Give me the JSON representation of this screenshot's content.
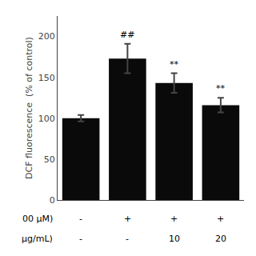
{
  "chart_data": {
    "type": "bar",
    "categories": [
      null,
      null,
      null,
      null
    ],
    "values": [
      100,
      173,
      143,
      116
    ],
    "errors": [
      4,
      18,
      12,
      9
    ],
    "color": "#0a0a0a",
    "ylabel": "DCF fluorescence  (% of control)",
    "ylim": [
      0,
      225
    ],
    "yticks": [
      0,
      50,
      100,
      150,
      200
    ],
    "grid": false,
    "annotations": [
      {
        "text": "##",
        "category_index": 1
      },
      {
        "text": "**",
        "category_index": 2
      },
      {
        "text": "**",
        "category_index": 3
      }
    ],
    "rows": [
      {
        "label": "00 μM)",
        "cells": [
          "-",
          "+",
          "+",
          "+"
        ]
      },
      {
        "label": "μg/mL)",
        "cells": [
          "-",
          "-",
          "10",
          "20"
        ]
      }
    ]
  }
}
